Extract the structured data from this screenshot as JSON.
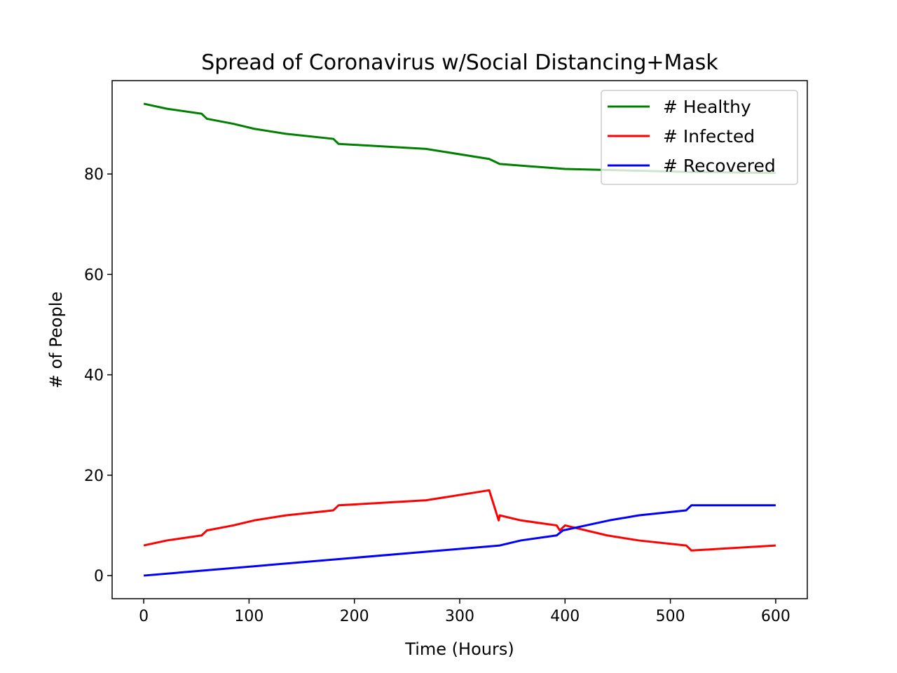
{
  "chart_data": {
    "type": "line",
    "title": "Spread of Coronavirus w/Social Distancing+Mask",
    "xlabel": "Time (Hours)",
    "ylabel": "# of People",
    "xlim": [
      -30,
      630
    ],
    "ylim": [
      -4.6,
      98.6
    ],
    "xticks": [
      0,
      100,
      200,
      300,
      400,
      500,
      600
    ],
    "yticks": [
      0,
      20,
      40,
      60,
      80
    ],
    "xtick_labels": [
      "0",
      "100",
      "200",
      "300",
      "400",
      "500",
      "600"
    ],
    "ytick_labels": [
      "0",
      "20",
      "40",
      "60",
      "80"
    ],
    "grid": false,
    "legend_position": "upper-right",
    "series": [
      {
        "name": "# Healthy",
        "color": "#008000",
        "points": [
          [
            0,
            94
          ],
          [
            22,
            93
          ],
          [
            55,
            92
          ],
          [
            60,
            91
          ],
          [
            85,
            90
          ],
          [
            105,
            89
          ],
          [
            135,
            88
          ],
          [
            180,
            87
          ],
          [
            185,
            86
          ],
          [
            268,
            85
          ],
          [
            328,
            83
          ],
          [
            338,
            82
          ],
          [
            400,
            81
          ],
          [
            440,
            80.8
          ],
          [
            520,
            80.4
          ],
          [
            600,
            80.2
          ]
        ]
      },
      {
        "name": "# Infected",
        "color": "#ff0000",
        "points": [
          [
            0,
            6
          ],
          [
            22,
            7
          ],
          [
            55,
            8
          ],
          [
            60,
            9
          ],
          [
            85,
            10
          ],
          [
            105,
            11
          ],
          [
            135,
            12
          ],
          [
            180,
            13
          ],
          [
            185,
            14
          ],
          [
            268,
            15
          ],
          [
            328,
            17
          ],
          [
            337,
            11
          ],
          [
            338,
            12
          ],
          [
            358,
            11
          ],
          [
            392,
            10
          ],
          [
            395,
            9
          ],
          [
            400,
            10
          ],
          [
            440,
            8
          ],
          [
            470,
            7
          ],
          [
            515,
            6
          ],
          [
            520,
            5
          ],
          [
            600,
            6
          ]
        ]
      },
      {
        "name": "# Recovered",
        "color": "#0000ff",
        "points": [
          [
            0,
            0
          ],
          [
            338,
            6
          ],
          [
            358,
            7
          ],
          [
            392,
            8
          ],
          [
            398,
            9
          ],
          [
            420,
            10
          ],
          [
            442,
            11
          ],
          [
            470,
            12
          ],
          [
            515,
            13
          ],
          [
            520,
            14
          ],
          [
            600,
            14
          ]
        ]
      }
    ]
  }
}
